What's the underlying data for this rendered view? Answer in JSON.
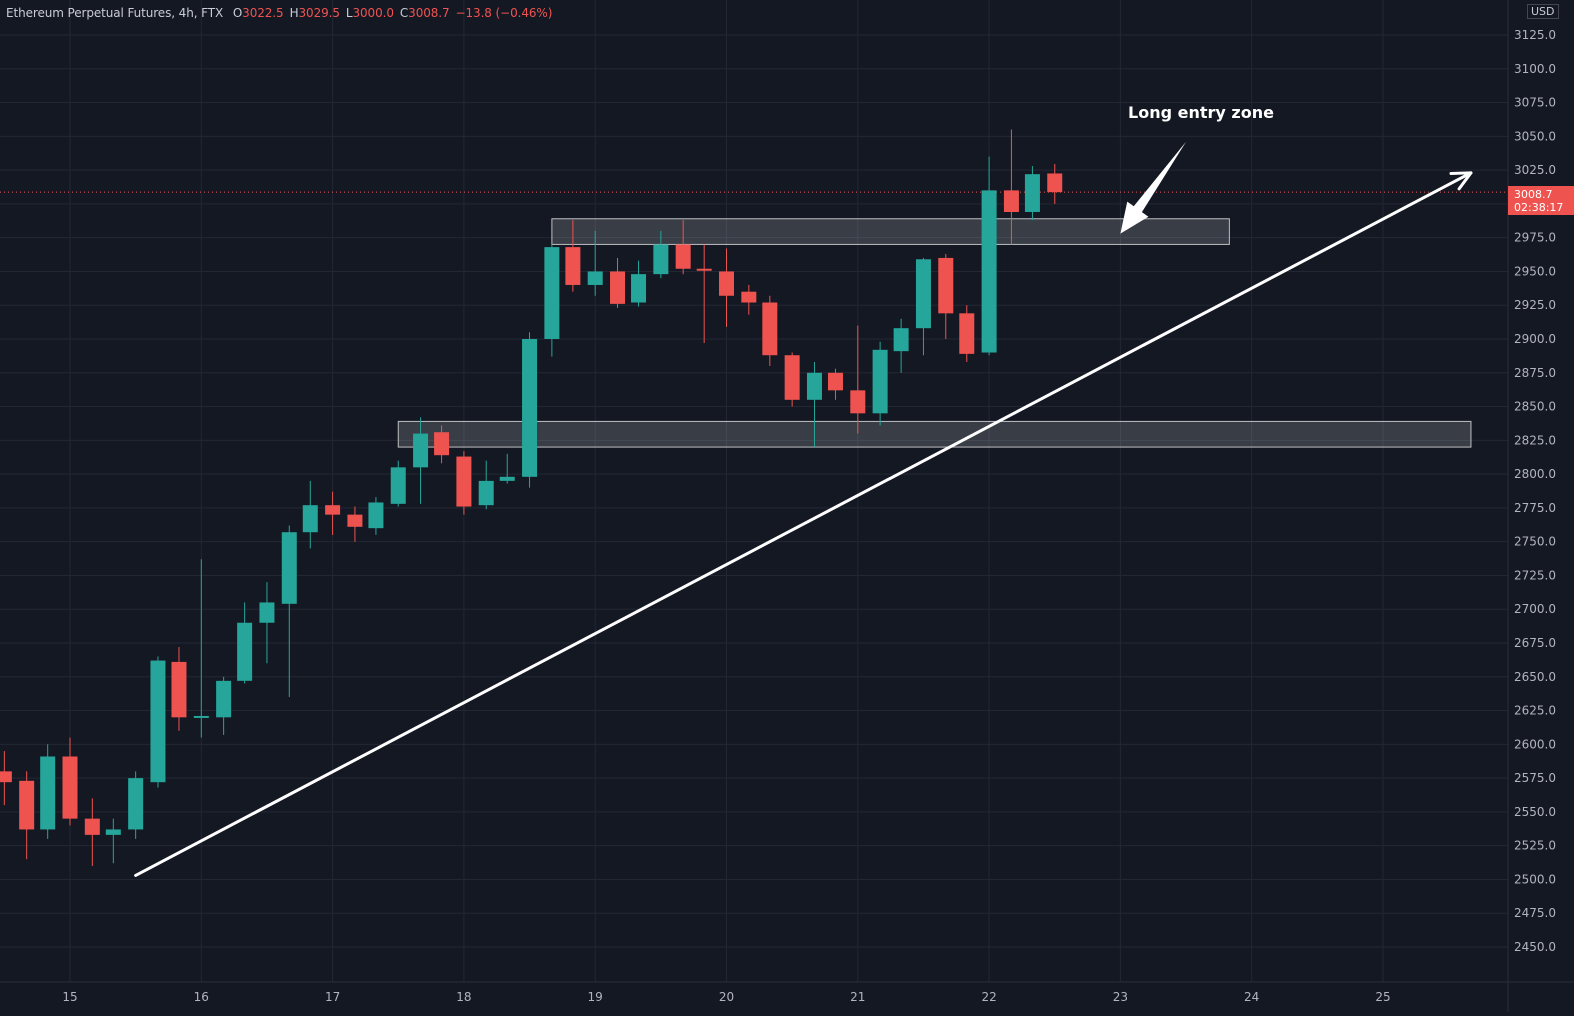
{
  "header": {
    "symbol": "Ethereum Perpetual Futures, 4h, FTX",
    "o_label": "O",
    "o_value": "3022.5",
    "h_label": "H",
    "h_value": "3029.5",
    "l_label": "L",
    "l_value": "3000.0",
    "c_label": "C",
    "c_value": "3008.7",
    "change": "−13.8 (−0.46%)"
  },
  "price_scale": {
    "currency": "USD",
    "last_price": "3008.7",
    "countdown": "02:38:17"
  },
  "annotation": {
    "text": "Long entry zone"
  },
  "colors": {
    "background": "#141823",
    "up": "#26a69a",
    "down": "#ef5350",
    "grid": "#232734",
    "axis_text": "#b2b5be",
    "drawing": "#ffffff"
  },
  "chart_data": {
    "type": "candlestick",
    "title": "Ethereum Perpetual Futures, 4h, FTX",
    "ylim": [
      2420,
      3150
    ],
    "y_ticks": [
      "2450.0",
      "2475.0",
      "2500.0",
      "2525.0",
      "2550.0",
      "2575.0",
      "2600.0",
      "2625.0",
      "2650.0",
      "2675.0",
      "2700.0",
      "2725.0",
      "2750.0",
      "2775.0",
      "2800.0",
      "2825.0",
      "2850.0",
      "2875.0",
      "2900.0",
      "2925.0",
      "2950.0",
      "2975.0",
      "3000.0",
      "3025.0",
      "3050.0",
      "3075.0",
      "3100.0",
      "3125.0"
    ],
    "x_ticks": [
      "15",
      "16",
      "17",
      "18",
      "19",
      "20",
      "21",
      "22",
      "23",
      "24",
      "25"
    ],
    "grid": true,
    "last_price": 3008.7,
    "candles": [
      {
        "t": 14.5,
        "o": 2580,
        "h": 2595,
        "l": 2555,
        "c": 2572
      },
      {
        "t": 14.67,
        "o": 2573,
        "h": 2580,
        "l": 2515,
        "c": 2537
      },
      {
        "t": 14.83,
        "o": 2537,
        "h": 2600,
        "l": 2530,
        "c": 2591
      },
      {
        "t": 15.0,
        "o": 2591,
        "h": 2605,
        "l": 2540,
        "c": 2545
      },
      {
        "t": 15.17,
        "o": 2545,
        "h": 2560,
        "l": 2510,
        "c": 2533
      },
      {
        "t": 15.33,
        "o": 2533,
        "h": 2545,
        "l": 2512,
        "c": 2537
      },
      {
        "t": 15.5,
        "o": 2537,
        "h": 2580,
        "l": 2530,
        "c": 2575
      },
      {
        "t": 15.67,
        "o": 2572,
        "h": 2665,
        "l": 2568,
        "c": 2662
      },
      {
        "t": 15.83,
        "o": 2661,
        "h": 2672,
        "l": 2610,
        "c": 2620
      },
      {
        "t": 16.0,
        "o": 2620,
        "h": 2737,
        "l": 2605,
        "c": 2621
      },
      {
        "t": 16.17,
        "o": 2620,
        "h": 2650,
        "l": 2607,
        "c": 2647
      },
      {
        "t": 16.33,
        "o": 2647,
        "h": 2705,
        "l": 2645,
        "c": 2690
      },
      {
        "t": 16.5,
        "o": 2690,
        "h": 2720,
        "l": 2660,
        "c": 2705
      },
      {
        "t": 16.67,
        "o": 2704,
        "h": 2762,
        "l": 2635,
        "c": 2757
      },
      {
        "t": 16.83,
        "o": 2757,
        "h": 2795,
        "l": 2745,
        "c": 2777
      },
      {
        "t": 17.0,
        "o": 2777,
        "h": 2787,
        "l": 2755,
        "c": 2770
      },
      {
        "t": 17.17,
        "o": 2770,
        "h": 2776,
        "l": 2750,
        "c": 2761
      },
      {
        "t": 17.33,
        "o": 2760,
        "h": 2783,
        "l": 2755,
        "c": 2779
      },
      {
        "t": 17.5,
        "o": 2778,
        "h": 2810,
        "l": 2776,
        "c": 2805
      },
      {
        "t": 17.67,
        "o": 2805,
        "h": 2842,
        "l": 2778,
        "c": 2830
      },
      {
        "t": 17.83,
        "o": 2831,
        "h": 2836,
        "l": 2808,
        "c": 2814
      },
      {
        "t": 18.0,
        "o": 2813,
        "h": 2817,
        "l": 2770,
        "c": 2776
      },
      {
        "t": 18.17,
        "o": 2777,
        "h": 2810,
        "l": 2774,
        "c": 2795
      },
      {
        "t": 18.33,
        "o": 2795,
        "h": 2815,
        "l": 2793,
        "c": 2798
      },
      {
        "t": 18.5,
        "o": 2798,
        "h": 2905,
        "l": 2790,
        "c": 2900
      },
      {
        "t": 18.67,
        "o": 2900,
        "h": 2970,
        "l": 2887,
        "c": 2968
      },
      {
        "t": 18.83,
        "o": 2968,
        "h": 2988,
        "l": 2935,
        "c": 2940
      },
      {
        "t": 19.0,
        "o": 2940,
        "h": 2980,
        "l": 2932,
        "c": 2950
      },
      {
        "t": 19.17,
        "o": 2950,
        "h": 2960,
        "l": 2923,
        "c": 2926
      },
      {
        "t": 19.33,
        "o": 2927,
        "h": 2958,
        "l": 2924,
        "c": 2948
      },
      {
        "t": 19.5,
        "o": 2948,
        "h": 2980,
        "l": 2945,
        "c": 2970
      },
      {
        "t": 19.67,
        "o": 2970,
        "h": 2988,
        "l": 2948,
        "c": 2952
      },
      {
        "t": 19.83,
        "o": 2952,
        "h": 2970,
        "l": 2897,
        "c": 2951
      },
      {
        "t": 20.0,
        "o": 2950,
        "h": 2967,
        "l": 2909,
        "c": 2932
      },
      {
        "t": 20.17,
        "o": 2935,
        "h": 2940,
        "l": 2918,
        "c": 2927
      },
      {
        "t": 20.33,
        "o": 2927,
        "h": 2932,
        "l": 2880,
        "c": 2888
      },
      {
        "t": 20.5,
        "o": 2888,
        "h": 2890,
        "l": 2850,
        "c": 2855
      },
      {
        "t": 20.67,
        "o": 2855,
        "h": 2883,
        "l": 2820,
        "c": 2875
      },
      {
        "t": 20.83,
        "o": 2875,
        "h": 2878,
        "l": 2855,
        "c": 2862
      },
      {
        "t": 21.0,
        "o": 2862,
        "h": 2910,
        "l": 2830,
        "c": 2845
      },
      {
        "t": 21.17,
        "o": 2845,
        "h": 2898,
        "l": 2836,
        "c": 2892
      },
      {
        "t": 21.33,
        "o": 2891,
        "h": 2915,
        "l": 2875,
        "c": 2908
      },
      {
        "t": 21.5,
        "o": 2908,
        "h": 2960,
        "l": 2888,
        "c": 2959
      },
      {
        "t": 21.67,
        "o": 2960,
        "h": 2963,
        "l": 2900,
        "c": 2919
      },
      {
        "t": 21.83,
        "o": 2919,
        "h": 2925,
        "l": 2883,
        "c": 2889
      },
      {
        "t": 22.0,
        "o": 2890,
        "h": 3035,
        "l": 2888,
        "c": 3010
      },
      {
        "t": 22.17,
        "o": 3010,
        "h": 3055,
        "l": 2970,
        "c": 2994
      },
      {
        "t": 22.33,
        "o": 2994,
        "h": 3028,
        "l": 2988,
        "c": 3022
      },
      {
        "t": 22.5,
        "o": 3022.5,
        "h": 3029.5,
        "l": 3000.0,
        "c": 3008.7
      }
    ],
    "zones": [
      {
        "x_start": 18.67,
        "x_end": 23.83,
        "y_low": 2970,
        "y_high": 2989
      },
      {
        "x_start": 17.5,
        "x_end": 25.67,
        "y_low": 2820,
        "y_high": 2839
      }
    ],
    "trendline": {
      "x_start": 15.5,
      "y_start": 2503,
      "x_end": 25.67,
      "y_end": 3023
    },
    "entry_arrow": {
      "x_start": 23.5,
      "y_start": 3046,
      "x_end": 23.0,
      "y_end": 2978,
      "label": "Long entry zone"
    }
  }
}
